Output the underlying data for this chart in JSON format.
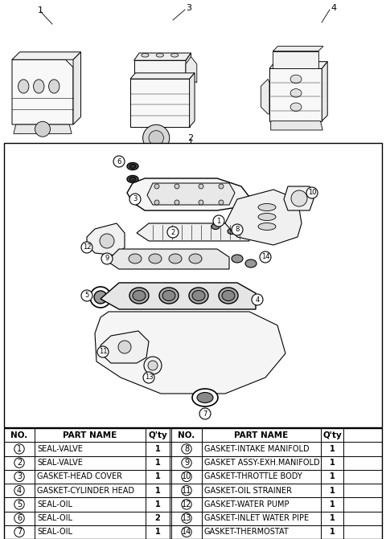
{
  "bg_color": "#ffffff",
  "text_color": "#000000",
  "left_rows": [
    [
      "1",
      "SEAL-VALVE",
      "1"
    ],
    [
      "2",
      "SEAL-VALVE",
      "1"
    ],
    [
      "3",
      "GASKET-HEAD COVER",
      "1"
    ],
    [
      "4",
      "GASKET-CYLINDER HEAD",
      "1"
    ],
    [
      "5",
      "SEAL-OIL",
      "1"
    ],
    [
      "6",
      "SEAL-OIL",
      "2"
    ],
    [
      "7",
      "SEAL-OIL",
      "1"
    ]
  ],
  "right_rows": [
    [
      "8",
      "GASKET-INTAKE MANIFOLD",
      "1"
    ],
    [
      "9",
      "GASKET ASSY-EXH.MANIFOLD",
      "1"
    ],
    [
      "10",
      "GASKET-THROTTLE BODY",
      "1"
    ],
    [
      "11",
      "GASKET-OIL STRAINER",
      "1"
    ],
    [
      "12",
      "GASKET-WATER PUMP",
      "1"
    ],
    [
      "13",
      "GASKET-INLET WATER PIPE",
      "1"
    ],
    [
      "14",
      "GASKET-THERMOSTAT",
      "1"
    ]
  ],
  "table_font_size": 7.0,
  "header_font_size": 7.5
}
